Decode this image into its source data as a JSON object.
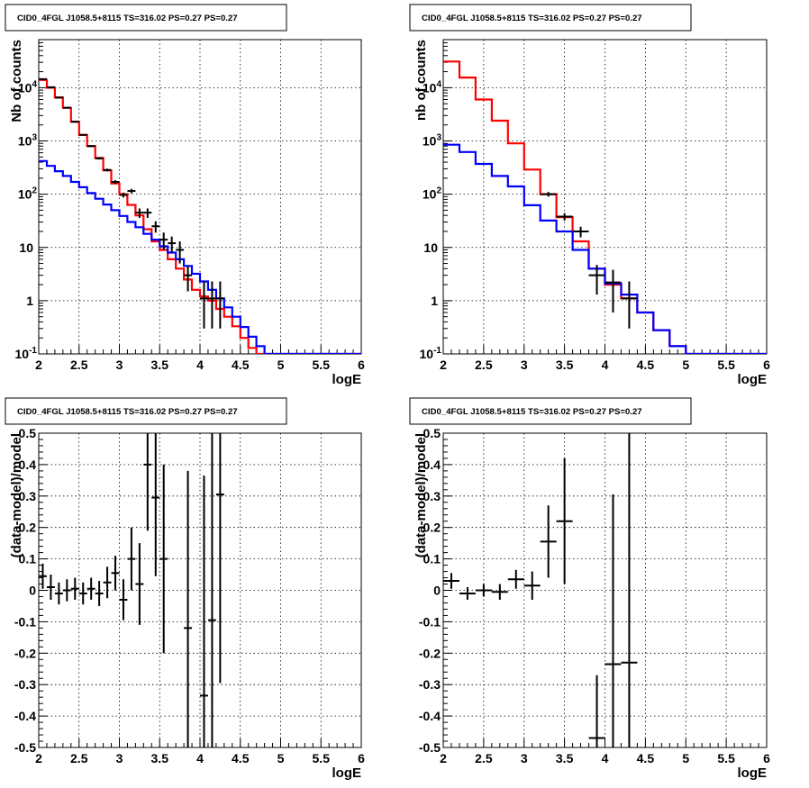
{
  "chart_data": [
    {
      "type": "line",
      "title": "CID0_4FGL J1058.5+8115 TS=316.02 PS=0.27 PS=0.27",
      "xlabel": "logE",
      "ylabel": "Nb of counts",
      "xlim": [
        2,
        6
      ],
      "ylim": [
        0.1,
        80000
      ],
      "yscale": "log",
      "grid": true,
      "x_ticks": [
        "2",
        "2.5",
        "3",
        "3.5",
        "4",
        "4.5",
        "5",
        "5.5",
        "6"
      ],
      "y_ticks": [
        "10^-1",
        "1",
        "10",
        "10^2",
        "10^3",
        "10^4"
      ],
      "series": [
        {
          "color": "#ff0000",
          "kind": "step",
          "edges": [
            2.0,
            2.1,
            2.2,
            2.3,
            2.4,
            2.5,
            2.6,
            2.7,
            2.8,
            2.9,
            3.0,
            3.1,
            3.2,
            3.3,
            3.4,
            3.5,
            3.6,
            3.7,
            3.8,
            3.9,
            4.0,
            4.1,
            4.2,
            4.3,
            4.4,
            4.5,
            4.6,
            4.7,
            4.8,
            4.9,
            5.0,
            5.1,
            5.2,
            5.3,
            5.4,
            5.5,
            5.6,
            5.7,
            5.8,
            5.9,
            6.0
          ],
          "values": [
            14000,
            10000,
            6600,
            4200,
            2300,
            1300,
            800,
            480,
            280,
            160,
            100,
            63,
            40,
            22,
            13,
            9,
            6,
            4,
            2.5,
            1.6,
            1.2,
            1.0,
            0.7,
            0.5,
            0.33,
            0.2,
            0.13,
            0.1,
            0.1,
            0.1,
            0.1,
            0.1,
            0.1,
            0.1,
            0.1,
            0.1,
            0.1,
            0.1,
            0.1,
            0.1
          ]
        },
        {
          "color": "#0000ff",
          "kind": "step",
          "edges": [
            2.0,
            2.1,
            2.2,
            2.3,
            2.4,
            2.5,
            2.6,
            2.7,
            2.8,
            2.9,
            3.0,
            3.1,
            3.2,
            3.3,
            3.4,
            3.5,
            3.6,
            3.7,
            3.8,
            3.9,
            4.0,
            4.1,
            4.2,
            4.3,
            4.4,
            4.5,
            4.6,
            4.7,
            4.8,
            4.9,
            5.0,
            5.1,
            5.2,
            5.3,
            5.4,
            5.5,
            5.6,
            5.7,
            5.8,
            5.9,
            6.0
          ],
          "values": [
            420,
            340,
            270,
            220,
            170,
            135,
            105,
            82,
            64,
            50,
            39,
            30,
            24,
            18,
            14,
            10.5,
            8,
            6,
            4.5,
            3.2,
            2.3,
            1.6,
            1.1,
            0.75,
            0.5,
            0.32,
            0.21,
            0.14,
            0.1,
            0.1,
            0.1,
            0.1,
            0.1,
            0.1,
            0.1,
            0.1,
            0.1,
            0.1,
            0.1,
            0.1
          ]
        },
        {
          "color": "#000000",
          "kind": "points",
          "x": [
            2.05,
            2.15,
            2.25,
            2.35,
            2.45,
            2.55,
            2.65,
            2.75,
            2.85,
            2.95,
            3.05,
            3.15,
            3.25,
            3.35,
            3.45,
            3.55,
            3.65,
            3.75,
            3.85,
            4.05,
            4.15,
            4.25
          ],
          "y": [
            14500,
            10200,
            6500,
            4200,
            2300,
            1300,
            800,
            470,
            285,
            170,
            97,
            115,
            45,
            45,
            25,
            14,
            12,
            9,
            3,
            1.1,
            1.1,
            1.1
          ],
          "yerr_lo": [
            120,
            100,
            80,
            65,
            48,
            36,
            28,
            22,
            17,
            13,
            10,
            11,
            9,
            9,
            6,
            5,
            4,
            4,
            1.5,
            0.8,
            0.8,
            0.8
          ],
          "yerr_hi": [
            120,
            100,
            80,
            65,
            48,
            36,
            28,
            22,
            17,
            13,
            10,
            11,
            9,
            9,
            6,
            5,
            4,
            4,
            1.5,
            1.2,
            1.2,
            1.2
          ]
        }
      ]
    },
    {
      "type": "line",
      "title": "CID0_4FGL J1058.5+8115 TS=316.02 PS=0.27 PS=0.27",
      "xlabel": "logE",
      "ylabel": "nb of counts",
      "xlim": [
        2,
        6
      ],
      "ylim": [
        0.1,
        80000
      ],
      "yscale": "log",
      "grid": true,
      "x_ticks": [
        "2",
        "2.5",
        "3",
        "3.5",
        "4",
        "4.5",
        "5",
        "5.5",
        "6"
      ],
      "y_ticks": [
        "10^-1",
        "1",
        "10",
        "10^2",
        "10^3",
        "10^4"
      ],
      "series": [
        {
          "color": "#ff0000",
          "kind": "step",
          "edges": [
            2.0,
            2.2,
            2.4,
            2.6,
            2.8,
            3.0,
            3.2,
            3.4,
            3.6,
            3.8,
            4.0,
            4.2,
            4.4,
            4.6,
            4.8,
            5.0,
            5.2,
            5.4,
            5.6,
            5.8,
            6.0
          ],
          "values": [
            31000,
            15500,
            6000,
            2400,
            900,
            290,
            100,
            37,
            13,
            4,
            2,
            1.1,
            0.6,
            0.28,
            0.14,
            0.1,
            0.1,
            0.1,
            0.1,
            0.1
          ]
        },
        {
          "color": "#0000ff",
          "kind": "step",
          "edges": [
            2.0,
            2.2,
            2.4,
            2.6,
            2.8,
            3.0,
            3.2,
            3.4,
            3.6,
            3.8,
            4.0,
            4.2,
            4.4,
            4.6,
            4.8,
            5.0,
            5.2,
            5.4,
            5.6,
            5.8,
            6.0
          ],
          "values": [
            850,
            620,
            370,
            220,
            140,
            62,
            32,
            20,
            9,
            4,
            2.1,
            1.3,
            0.6,
            0.28,
            0.14,
            0.1,
            0.1,
            0.1,
            0.1,
            0.1
          ]
        },
        {
          "color": "#000000",
          "kind": "points",
          "x": [
            3.3,
            3.5,
            3.7,
            3.9,
            4.1,
            4.3
          ],
          "y": [
            100,
            38,
            20,
            3,
            2.2,
            1.1
          ],
          "yerr_lo": [
            10,
            6,
            4.5,
            1.7,
            1.6,
            0.8
          ],
          "yerr_hi": [
            10,
            6,
            4.5,
            1.7,
            1.6,
            1.2
          ]
        }
      ]
    },
    {
      "type": "scatter",
      "title": "CID0_4FGL J1058.5+8115 TS=316.02 PS=0.27 PS=0.27",
      "xlabel": "logE",
      "ylabel": "(data-model)/model",
      "xlim": [
        2,
        6
      ],
      "ylim": [
        -0.5,
        0.5
      ],
      "grid": true,
      "x_ticks": [
        "2",
        "2.5",
        "3",
        "3.5",
        "4",
        "4.5",
        "5",
        "5.5",
        "6"
      ],
      "y_ticks": [
        "-0.5",
        "-0.4",
        "-0.3",
        "-0.2",
        "-0.1",
        "0",
        "0.1",
        "0.2",
        "0.3",
        "0.4",
        "0.5"
      ],
      "series": [
        {
          "color": "#000000",
          "bin_half_width": 0.05,
          "x": [
            2.05,
            2.15,
            2.25,
            2.35,
            2.45,
            2.55,
            2.65,
            2.75,
            2.85,
            2.95,
            3.05,
            3.15,
            3.25,
            3.35,
            3.45,
            3.55,
            3.85,
            4.05,
            4.15,
            4.25
          ],
          "y": [
            0.045,
            0.01,
            -0.01,
            0.0,
            0.005,
            -0.01,
            0.005,
            -0.01,
            0.025,
            0.055,
            -0.03,
            0.1,
            0.02,
            0.4,
            0.295,
            0.1,
            -0.12,
            -0.335,
            -0.095,
            0.305
          ],
          "yerr": [
            0.04,
            0.04,
            0.035,
            0.035,
            0.035,
            0.035,
            0.035,
            0.04,
            0.05,
            0.055,
            0.065,
            0.1,
            0.13,
            0.21,
            0.25,
            0.3,
            0.5,
            0.7,
            0.6,
            0.6
          ]
        }
      ]
    },
    {
      "type": "scatter",
      "title": "CID0_4FGL J1058.5+8115 TS=316.02 PS=0.27 PS=0.27",
      "xlabel": "logE",
      "ylabel": "(data-model)/model",
      "xlim": [
        2,
        6
      ],
      "ylim": [
        -0.5,
        0.5
      ],
      "grid": true,
      "x_ticks": [
        "2",
        "2.5",
        "3",
        "3.5",
        "4",
        "4.5",
        "5",
        "5.5",
        "6"
      ],
      "y_ticks": [
        "-0.5",
        "-0.4",
        "-0.3",
        "-0.2",
        "-0.1",
        "0",
        "0.1",
        "0.2",
        "0.3",
        "0.4",
        "0.5"
      ],
      "series": [
        {
          "color": "#000000",
          "bin_half_width": 0.1,
          "x": [
            2.1,
            2.3,
            2.5,
            2.7,
            2.9,
            3.1,
            3.3,
            3.5,
            3.9,
            4.1,
            4.3
          ],
          "y": [
            0.03,
            -0.01,
            0.0,
            -0.005,
            0.035,
            0.015,
            0.155,
            0.22,
            -0.47,
            -0.235,
            -0.23
          ],
          "yerr": [
            0.025,
            0.02,
            0.02,
            0.025,
            0.03,
            0.045,
            0.115,
            0.2,
            0.2,
            0.54,
            0.75
          ]
        }
      ]
    }
  ]
}
